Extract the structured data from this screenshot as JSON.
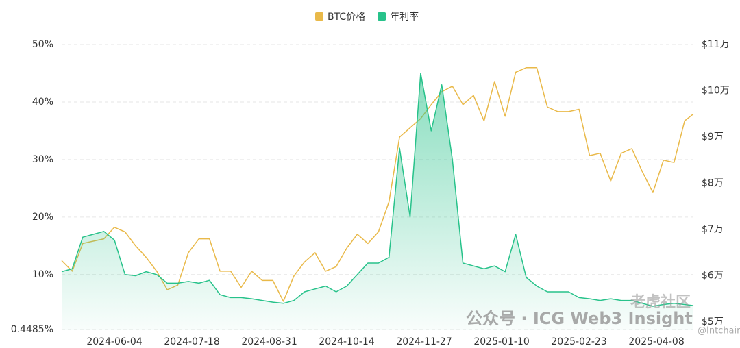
{
  "chart_data": {
    "type": "line",
    "x": [
      "2024-05-05",
      "2024-05-11",
      "2024-05-17",
      "2024-05-23",
      "2024-05-29",
      "2024-06-04",
      "2024-06-10",
      "2024-06-16",
      "2024-06-22",
      "2024-06-28",
      "2024-07-04",
      "2024-07-10",
      "2024-07-16",
      "2024-07-22",
      "2024-07-28",
      "2024-08-03",
      "2024-08-09",
      "2024-08-15",
      "2024-08-21",
      "2024-08-27",
      "2024-09-02",
      "2024-09-08",
      "2024-09-14",
      "2024-09-20",
      "2024-09-26",
      "2024-10-02",
      "2024-10-08",
      "2024-10-14",
      "2024-10-20",
      "2024-10-26",
      "2024-11-01",
      "2024-11-07",
      "2024-11-13",
      "2024-11-19",
      "2024-11-25",
      "2024-12-01",
      "2024-12-07",
      "2024-12-13",
      "2024-12-19",
      "2024-12-25",
      "2024-12-31",
      "2025-01-06",
      "2025-01-12",
      "2025-01-18",
      "2025-01-24",
      "2025-01-30",
      "2025-02-05",
      "2025-02-11",
      "2025-02-17",
      "2025-02-23",
      "2025-03-01",
      "2025-03-07",
      "2025-03-13",
      "2025-03-19",
      "2025-03-25",
      "2025-03-31",
      "2025-04-06",
      "2025-04-12",
      "2025-04-18",
      "2025-04-24",
      "2025-04-29"
    ],
    "xlim": [
      "2024-05-05",
      "2025-04-29"
    ],
    "xticks": [
      "2024-06-04",
      "2024-07-18",
      "2024-08-31",
      "2024-10-14",
      "2024-11-27",
      "2025-01-10",
      "2025-02-23",
      "2025-04-08"
    ],
    "ylim": [
      0.4485,
      50
    ],
    "yticks": [
      {
        "value": 0.4485,
        "label": "0.4485%"
      },
      {
        "value": 10,
        "label": "10%"
      },
      {
        "value": 20,
        "label": "20%"
      },
      {
        "value": 30,
        "label": "30%"
      },
      {
        "value": 40,
        "label": "40%"
      },
      {
        "value": 50,
        "label": "50%"
      }
    ],
    "y2lim": [
      48400,
      110000
    ],
    "y2ticks": [
      {
        "value": 50000,
        "label": "$5万"
      },
      {
        "value": 60000,
        "label": "$6万"
      },
      {
        "value": 70000,
        "label": "$7万"
      },
      {
        "value": 80000,
        "label": "$8万"
      },
      {
        "value": 90000,
        "label": "$9万"
      },
      {
        "value": 100000,
        "label": "$10万"
      },
      {
        "value": 110000,
        "label": "$11万"
      }
    ],
    "grid": true,
    "legend": "top",
    "series": [
      {
        "name": "BTC价格",
        "color": "#e9b949",
        "axis": "y2",
        "values": [
          63300,
          61000,
          67000,
          67500,
          68000,
          70500,
          69500,
          66500,
          64000,
          61000,
          57000,
          58000,
          65000,
          68000,
          68000,
          61000,
          61000,
          57500,
          61000,
          59000,
          59000,
          54500,
          60000,
          63000,
          65000,
          61000,
          62000,
          66000,
          69000,
          67000,
          69500,
          76000,
          90000,
          92000,
          94000,
          97000,
          99800,
          101000,
          97000,
          99000,
          93500,
          102000,
          94500,
          104000,
          105000,
          105000,
          96500,
          95500,
          95500,
          96000,
          86000,
          86500,
          80500,
          86500,
          87500,
          82500,
          78000,
          85000,
          84500,
          93500,
          95000
        ]
      },
      {
        "name": "年利率",
        "color": "#27c28a",
        "values": [
          10.5,
          11,
          16.5,
          17,
          17.5,
          16,
          10,
          9.8,
          10.5,
          10,
          8.5,
          8.5,
          8.8,
          8.5,
          9,
          6.5,
          6,
          6,
          5.8,
          5.5,
          5.2,
          5,
          5.5,
          7,
          7.5,
          8,
          7,
          8,
          10,
          12,
          12,
          13,
          32,
          20,
          45,
          35,
          43,
          30,
          12,
          11.5,
          11,
          11.5,
          10.5,
          17,
          9.5,
          8,
          7,
          7,
          7,
          6,
          5.8,
          5.5,
          5.8,
          5.5,
          5.5,
          5,
          4.5,
          4.8,
          5,
          4.8,
          4.6
        ]
      }
    ],
    "annotations": [
      "公众号 · ICG Web3 Insight",
      "@Intchains",
      "老虎社区"
    ]
  }
}
